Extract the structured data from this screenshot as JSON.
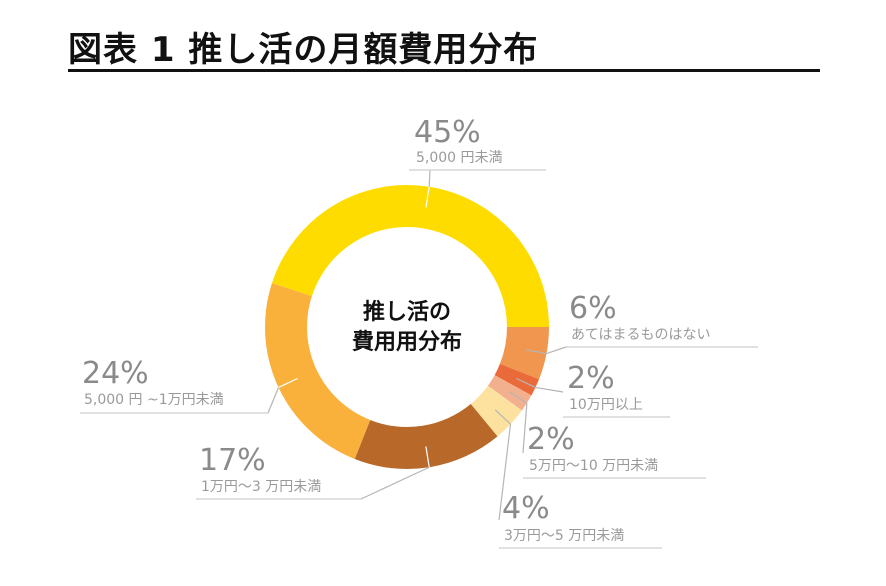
{
  "title": "図表 1 推し活の月額費用分布",
  "chart_data": {
    "type": "pie",
    "donut": true,
    "center_label": [
      "推し活の",
      "費用用分布"
    ],
    "slices": [
      {
        "label": "5,000 円未満",
        "value": 45,
        "value_label": "45%",
        "color": "#FFDC00"
      },
      {
        "label": "あてはまるものはない",
        "value": 6,
        "value_label": "6%",
        "color": "#F0964E"
      },
      {
        "label": "10万円以上",
        "value": 2,
        "value_label": "2%",
        "color": "#EB6A3A"
      },
      {
        "label": "5万円～10 万円未満",
        "value": 2,
        "value_label": "2%",
        "color": "#F2B08E"
      },
      {
        "label": "3万円～5 万円未満",
        "value": 4,
        "value_label": "4%",
        "color": "#FCE29E"
      },
      {
        "label": "1万円～3 万円未満",
        "value": 17,
        "value_label": "17%",
        "color": "#B8692A"
      },
      {
        "label": "5,000 円 ~1万円未満",
        "value": 24,
        "value_label": "24%",
        "color": "#F9B13C"
      }
    ]
  }
}
